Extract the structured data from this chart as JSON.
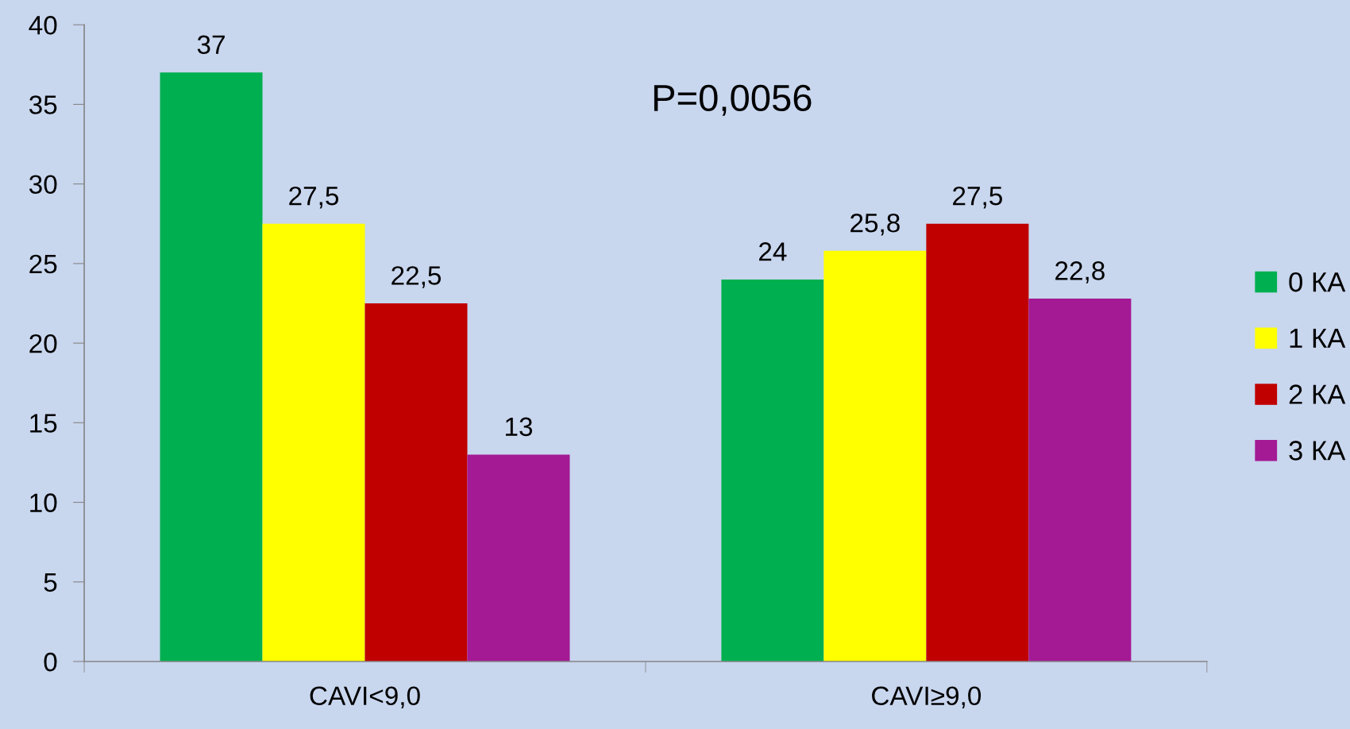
{
  "chart_data": {
    "type": "bar",
    "categories": [
      "CAVI<9,0",
      "CAVI≥9,0"
    ],
    "series": [
      {
        "name": "0 КА",
        "color": "#00b050",
        "values": [
          37,
          24
        ],
        "value_labels": [
          "37",
          "24"
        ]
      },
      {
        "name": "1 КА",
        "color": "#ffff00",
        "values": [
          27.5,
          25.8
        ],
        "value_labels": [
          "27,5",
          "25,8"
        ]
      },
      {
        "name": "2 КА",
        "color": "#c00000",
        "values": [
          22.5,
          27.5
        ],
        "value_labels": [
          "22,5",
          "27,5"
        ]
      },
      {
        "name": "3 КА",
        "color": "#a31a94",
        "values": [
          13,
          22.8
        ],
        "value_labels": [
          "13",
          "22,8"
        ]
      }
    ],
    "ylim": [
      0,
      40
    ],
    "yticks": [
      0,
      5,
      10,
      15,
      20,
      25,
      30,
      35,
      40
    ],
    "annotations": [
      "P=0,0056"
    ],
    "grid": false,
    "legend": "right"
  }
}
